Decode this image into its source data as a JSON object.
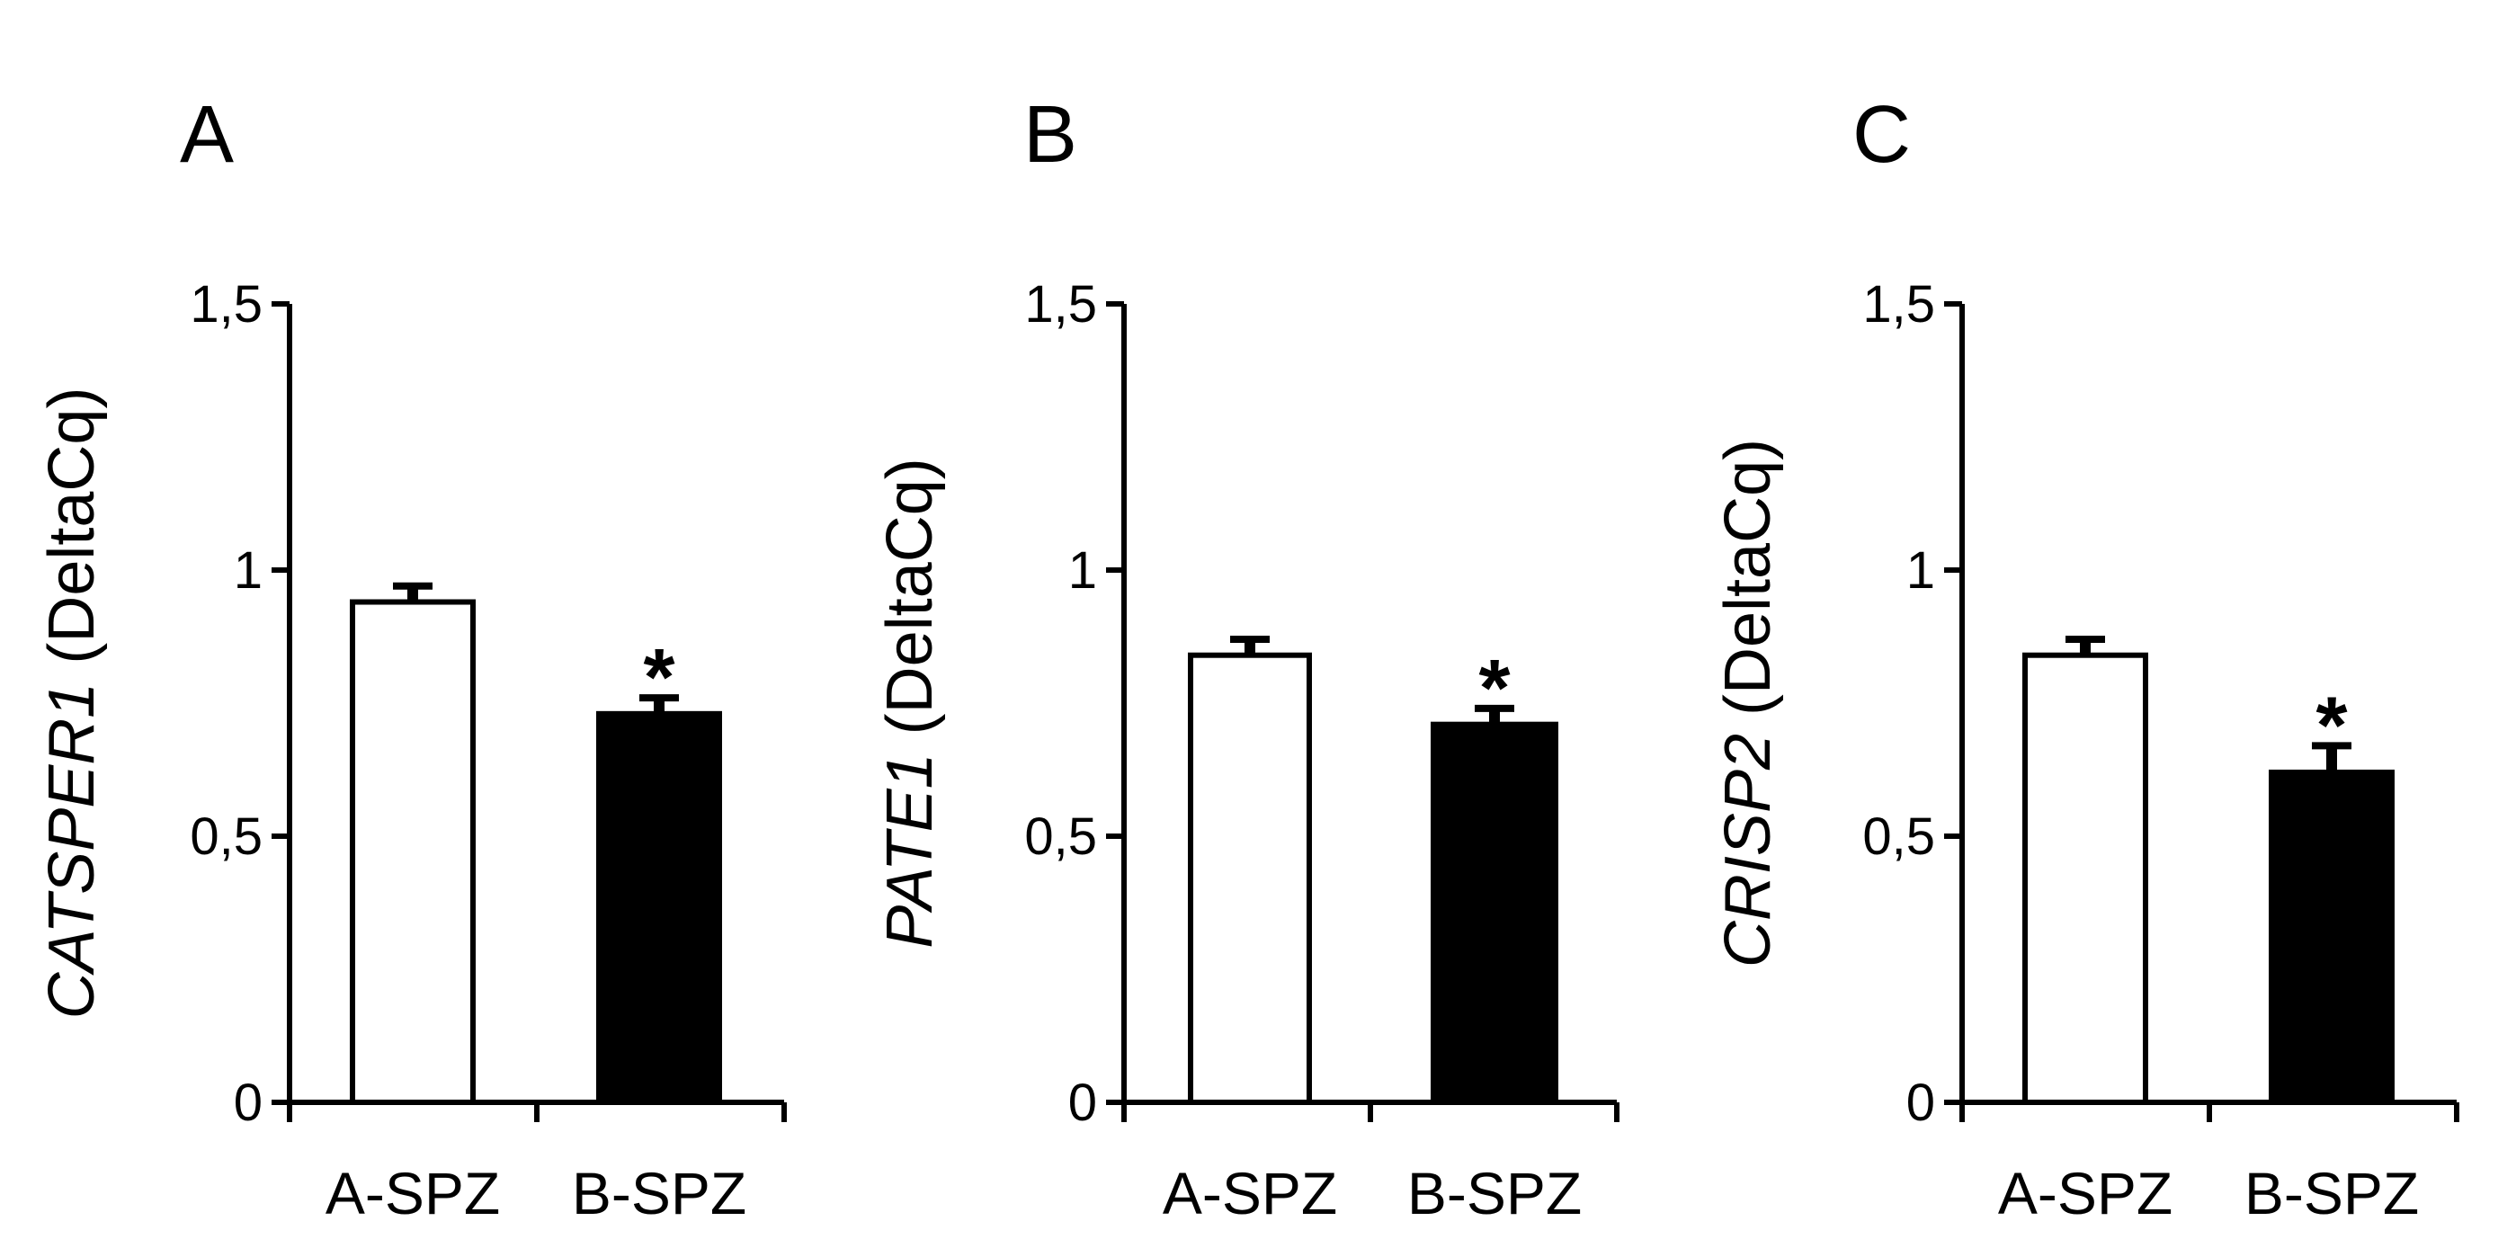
{
  "figure": {
    "charts": [
      {
        "panel": "A",
        "type": "bar",
        "gene": "CATSPER1",
        "ylabel_suffix": "(DeltaCq)",
        "categories": [
          "A-SPZ",
          "B-SPZ"
        ],
        "values": [
          0.94,
          0.73
        ],
        "errors": [
          0.03,
          0.03
        ],
        "significance": [
          "",
          "*"
        ],
        "ylim": [
          0,
          1.5
        ],
        "yticks": [
          0,
          0.5,
          1,
          1.5
        ],
        "ytick_labels": [
          "0",
          "0,5",
          "1",
          "1,5"
        ],
        "bar_fills": [
          "#ffffff",
          "#000000"
        ]
      },
      {
        "panel": "B",
        "type": "bar",
        "gene": "PATE1",
        "ylabel_suffix": "(DeltaCq)",
        "categories": [
          "A-SPZ",
          "B-SPZ"
        ],
        "values": [
          0.84,
          0.71
        ],
        "errors": [
          0.03,
          0.03
        ],
        "significance": [
          "",
          "*"
        ],
        "ylim": [
          0,
          1.5
        ],
        "yticks": [
          0,
          0.5,
          1,
          1.5
        ],
        "ytick_labels": [
          "0",
          "0,5",
          "1",
          "1,5"
        ],
        "bar_fills": [
          "#ffffff",
          "#000000"
        ]
      },
      {
        "panel": "C",
        "type": "bar",
        "gene": "CRISP2",
        "ylabel_suffix": "(DeltaCq)",
        "categories": [
          "A-SPZ",
          "B-SPZ"
        ],
        "values": [
          0.84,
          0.62
        ],
        "errors": [
          0.03,
          0.05
        ],
        "significance": [
          "",
          "*"
        ],
        "ylim": [
          0,
          1.5
        ],
        "yticks": [
          0,
          0.5,
          1,
          1.5
        ],
        "ytick_labels": [
          "0",
          "0,5",
          "1",
          "1,5"
        ],
        "bar_fills": [
          "#ffffff",
          "#000000"
        ]
      }
    ]
  }
}
